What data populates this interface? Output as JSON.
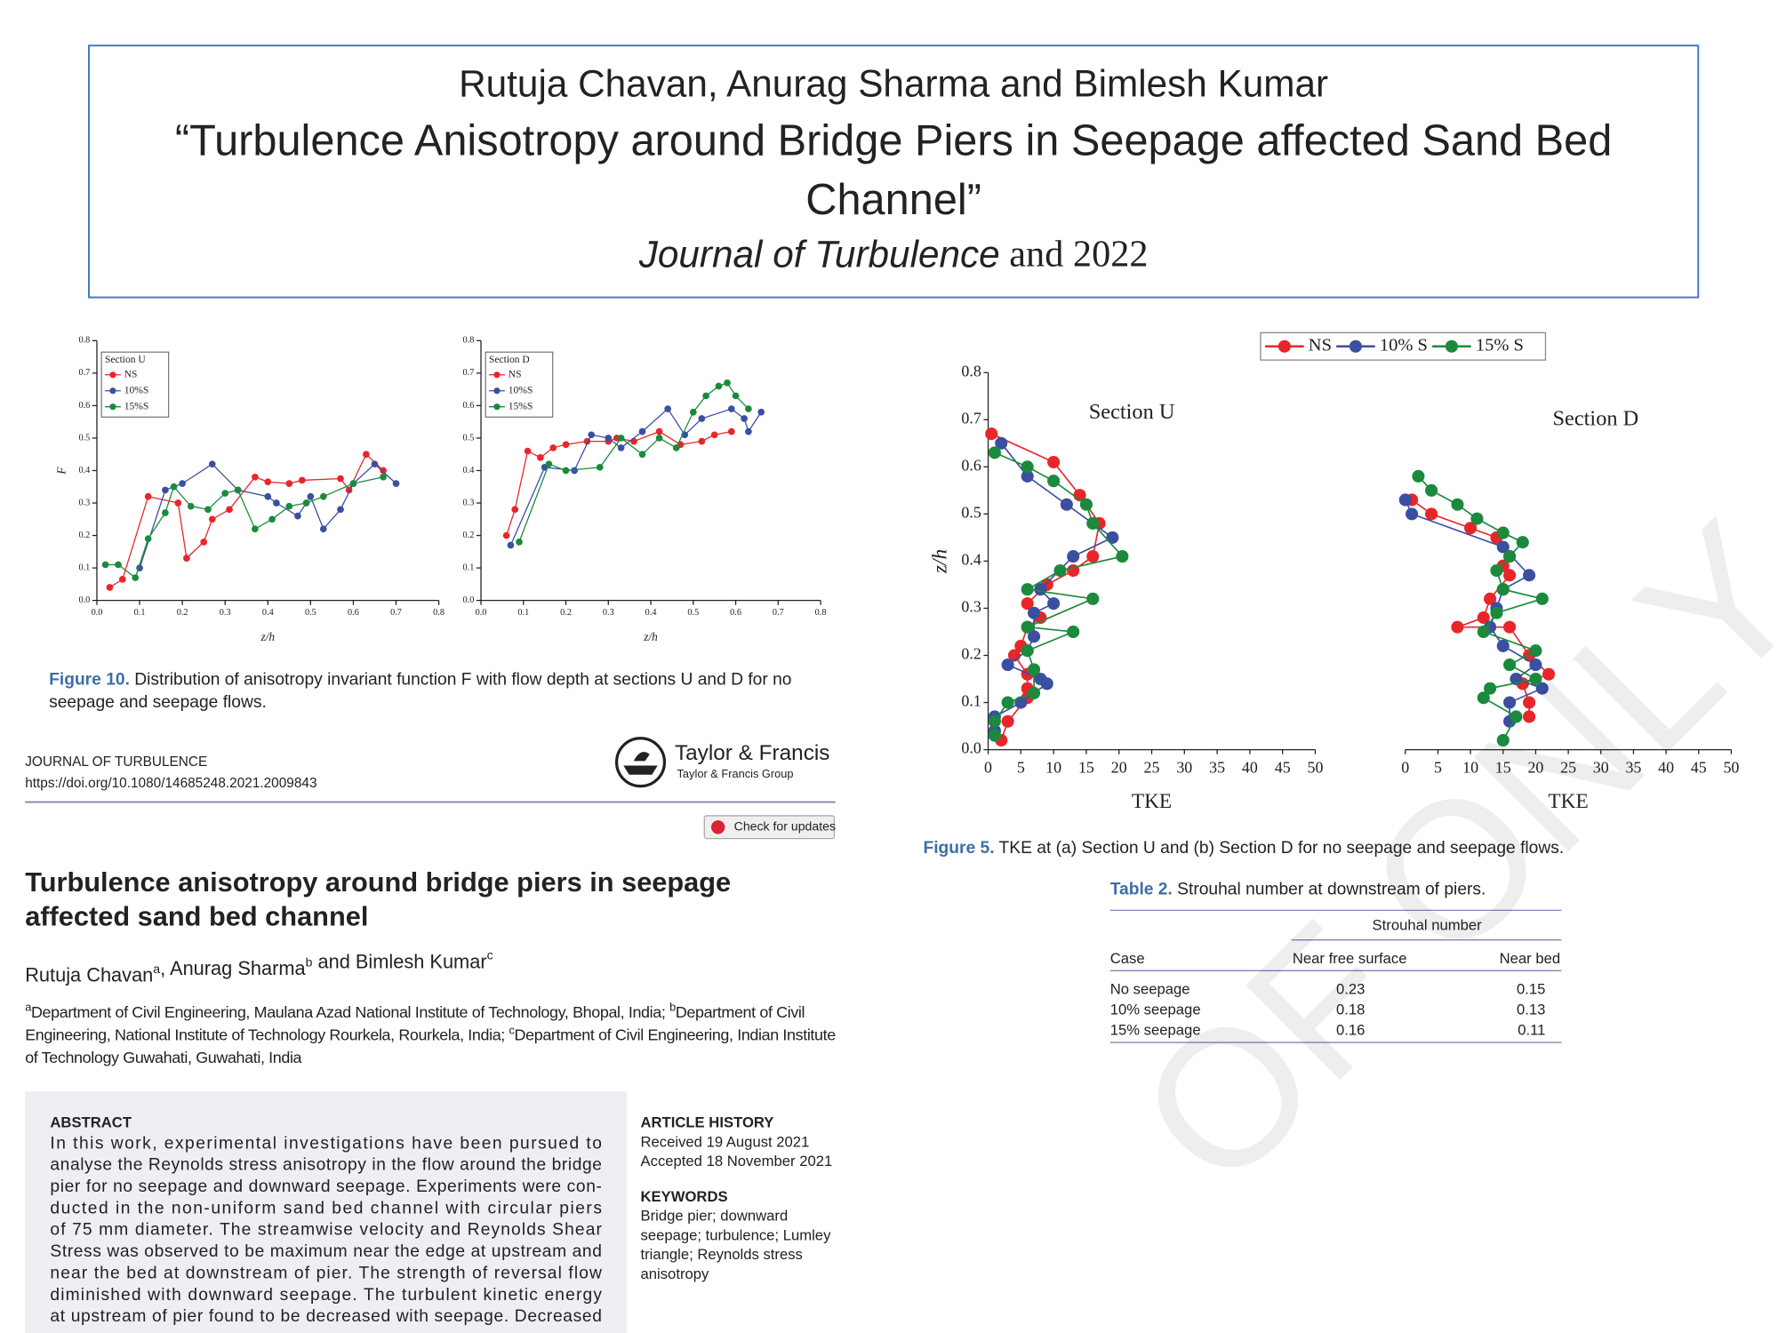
{
  "header": {
    "authors": "Rutuja Chavan, Anurag Sharma and Bimlesh Kumar",
    "title_lines": [
      "“Turbulence Anisotropy around Bridge Piers in Seepage affected Sand Bed",
      "Channel”"
    ],
    "journal": "Journal of Turbulence",
    "year_text": " and 2022"
  },
  "chart_data": [
    {
      "type": "line",
      "x_label": "z/h",
      "y_label": "F",
      "legend": "upper left",
      "legend_title": "Section U",
      "xlim": [
        0,
        0.8
      ],
      "ylim": [
        0,
        0.8
      ],
      "xticks": [
        {
          "value": 0,
          "label": "0.0"
        },
        0.1,
        0.2,
        0.3,
        0.4,
        0.5,
        0.6,
        0.7,
        0.8
      ],
      "yticks": [
        {
          "value": 0,
          "label": "0.0"
        },
        0.1,
        0.2,
        0.3,
        0.4,
        0.5,
        0.6,
        0.7,
        0.8
      ],
      "series": [
        {
          "name": "NS",
          "color": "#e8262a",
          "x": [
            0.03,
            0.06,
            0.12,
            0.19,
            0.21,
            0.25,
            0.27,
            0.31,
            0.37,
            0.4,
            0.45,
            0.48,
            0.57,
            0.59,
            0.63,
            0.67
          ],
          "values": [
            0.04,
            0.065,
            0.32,
            0.3,
            0.13,
            0.18,
            0.25,
            0.28,
            0.38,
            0.365,
            0.36,
            0.37,
            0.375,
            0.34,
            0.45,
            0.4
          ]
        },
        {
          "name": "10%S",
          "color": "#3a4fa0",
          "x": [
            0.1,
            0.16,
            0.2,
            0.27,
            0.33,
            0.4,
            0.42,
            0.47,
            0.5,
            0.53,
            0.57,
            0.6,
            0.65,
            0.7
          ],
          "values": [
            0.1,
            0.34,
            0.36,
            0.42,
            0.34,
            0.32,
            0.3,
            0.26,
            0.32,
            0.22,
            0.28,
            0.36,
            0.42,
            0.36
          ]
        },
        {
          "name": "15%S",
          "color": "#1b8a3c",
          "x": [
            0.02,
            0.05,
            0.09,
            0.12,
            0.16,
            0.18,
            0.22,
            0.26,
            0.3,
            0.33,
            0.37,
            0.41,
            0.45,
            0.49,
            0.53,
            0.6,
            0.67
          ],
          "values": [
            0.11,
            0.11,
            0.07,
            0.19,
            0.27,
            0.35,
            0.29,
            0.28,
            0.33,
            0.34,
            0.22,
            0.25,
            0.29,
            0.3,
            0.32,
            0.36,
            0.38
          ]
        }
      ]
    },
    {
      "type": "line",
      "x_label": "z/h",
      "legend": "upper left",
      "legend_title": "Section D",
      "xlim": [
        0,
        0.8
      ],
      "ylim": [
        0,
        0.8
      ],
      "xticks": [
        {
          "value": 0,
          "label": "0.0"
        },
        0.1,
        0.2,
        0.3,
        0.4,
        0.5,
        0.6,
        0.7,
        0.8
      ],
      "yticks": [
        {
          "value": 0,
          "label": "0.0"
        },
        0.1,
        0.2,
        0.3,
        0.4,
        0.5,
        0.6,
        0.7,
        0.8
      ],
      "series": [
        {
          "name": "NS",
          "color": "#e8262a",
          "x": [
            0.06,
            0.08,
            0.11,
            0.14,
            0.17,
            0.2,
            0.25,
            0.3,
            0.32,
            0.36,
            0.42,
            0.47,
            0.52,
            0.55,
            0.59
          ],
          "values": [
            0.2,
            0.28,
            0.46,
            0.44,
            0.47,
            0.48,
            0.49,
            0.49,
            0.5,
            0.49,
            0.52,
            0.48,
            0.49,
            0.51,
            0.52
          ]
        },
        {
          "name": "10%S",
          "color": "#3a4fa0",
          "x": [
            0.07,
            0.15,
            0.22,
            0.26,
            0.3,
            0.33,
            0.38,
            0.44,
            0.48,
            0.52,
            0.59,
            0.62,
            0.63,
            0.66
          ],
          "values": [
            0.17,
            0.41,
            0.4,
            0.51,
            0.5,
            0.47,
            0.52,
            0.59,
            0.51,
            0.56,
            0.59,
            0.56,
            0.52,
            0.58
          ]
        },
        {
          "name": "15%S",
          "color": "#1b8a3c",
          "x": [
            0.09,
            0.16,
            0.2,
            0.28,
            0.33,
            0.38,
            0.42,
            0.46,
            0.5,
            0.53,
            0.56,
            0.58,
            0.6,
            0.63
          ],
          "values": [
            0.18,
            0.42,
            0.4,
            0.41,
            0.5,
            0.45,
            0.5,
            0.47,
            0.58,
            0.63,
            0.66,
            0.67,
            0.63,
            0.59
          ]
        }
      ]
    },
    {
      "type": "line",
      "x_label": "TKE",
      "y_label": "z/h",
      "legend": "top",
      "annotation": "Section U",
      "xlim": [
        0,
        50
      ],
      "ylim": [
        0,
        0.8
      ],
      "xticks": [
        0,
        5,
        10,
        15,
        20,
        25,
        30,
        35,
        40,
        45,
        50
      ],
      "yticks": [
        {
          "value": 0,
          "label": "0.0"
        },
        0.1,
        0.2,
        0.3,
        0.4,
        0.5,
        0.6,
        0.7,
        0.8
      ],
      "series": [
        {
          "name": "NS",
          "color": "#e8262a",
          "x": [
            0.5,
            10,
            14,
            17,
            16,
            13,
            9,
            6,
            8,
            6,
            5,
            4,
            6,
            6,
            6,
            3,
            2
          ],
          "values": [
            0.67,
            0.61,
            0.54,
            0.48,
            0.41,
            0.38,
            0.35,
            0.31,
            0.28,
            0.26,
            0.22,
            0.2,
            0.16,
            0.13,
            0.11,
            0.06,
            0.02
          ]
        },
        {
          "name": "10% S",
          "color": "#3a4fa0",
          "x": [
            2,
            6,
            12,
            19,
            13,
            8,
            10,
            7,
            7,
            6,
            3,
            8,
            9,
            5,
            1,
            1
          ],
          "values": [
            0.65,
            0.58,
            0.52,
            0.45,
            0.41,
            0.34,
            0.31,
            0.29,
            0.24,
            0.21,
            0.18,
            0.15,
            0.14,
            0.1,
            0.07,
            0.04
          ]
        },
        {
          "name": "15% S",
          "color": "#1b8a3c",
          "x": [
            1,
            6,
            10,
            15,
            16,
            20.5,
            11,
            6,
            16,
            6,
            13,
            6,
            7,
            7,
            3,
            1,
            1
          ],
          "values": [
            0.63,
            0.6,
            0.57,
            0.52,
            0.48,
            0.41,
            0.38,
            0.34,
            0.32,
            0.26,
            0.25,
            0.21,
            0.17,
            0.12,
            0.1,
            0.06,
            0.03
          ]
        }
      ]
    },
    {
      "type": "line",
      "x_label": "TKE",
      "annotation": "Section D",
      "xlim": [
        0,
        50
      ],
      "ylim": [
        0,
        0.8
      ],
      "xticks": [
        0,
        5,
        10,
        15,
        20,
        25,
        30,
        35,
        40,
        45,
        50
      ],
      "series": [
        {
          "color": "#e8262a",
          "x": [
            1,
            4,
            10,
            14,
            16,
            15,
            16,
            13,
            12,
            8,
            16,
            19,
            22,
            18,
            19,
            19
          ],
          "values": [
            0.53,
            0.5,
            0.47,
            0.45,
            0.41,
            0.39,
            0.37,
            0.32,
            0.28,
            0.26,
            0.26,
            0.2,
            0.16,
            0.14,
            0.1,
            0.07
          ]
        },
        {
          "color": "#3a4fa0",
          "x": [
            0,
            1,
            15,
            19,
            15,
            14,
            13,
            15,
            20,
            17,
            21,
            16,
            16
          ],
          "values": [
            0.53,
            0.5,
            0.43,
            0.37,
            0.34,
            0.3,
            0.26,
            0.22,
            0.18,
            0.15,
            0.13,
            0.1,
            0.06
          ]
        },
        {
          "color": "#1b8a3c",
          "x": [
            2,
            4,
            8,
            11,
            15,
            18,
            16,
            14,
            15,
            21,
            14,
            12,
            20,
            16,
            20,
            13,
            12,
            17,
            15
          ],
          "values": [
            0.58,
            0.55,
            0.52,
            0.49,
            0.46,
            0.44,
            0.41,
            0.38,
            0.34,
            0.32,
            0.29,
            0.25,
            0.21,
            0.18,
            0.15,
            0.13,
            0.11,
            0.07,
            0.02
          ]
        }
      ]
    }
  ],
  "captions": {
    "figure10": {
      "label": "Figure 10.",
      "lines": [
        " Distribution of anisotropy invariant function F with flow depth at sections U and D for no",
        "seepage and seepage flows."
      ]
    },
    "figure5": {
      "label": "Figure 5.",
      "text": " TKE at (a) Section U and (b) Section D for no seepage and seepage flows."
    }
  },
  "table": {
    "label": "Table 2.",
    "caption": " Strouhal number at downstream of piers.",
    "group_header": "Strouhal number",
    "columns": [
      "Case",
      "Near free surface",
      "Near bed"
    ],
    "rows": [
      [
        "No seepage",
        0.23,
        0.15
      ],
      [
        "10% seepage",
        0.18,
        0.13
      ],
      [
        "15% seepage",
        0.16,
        0.11
      ]
    ]
  },
  "paper": {
    "journal": "JOURNAL OF TURBULENCE",
    "doi": "https://doi.org/10.1080/14685248.2021.2009843",
    "publisher": "Taylor & Francis",
    "publisher_group": "Taylor & Francis Group",
    "updates_button": "Check for updates",
    "title_lines": [
      "Turbulence anisotropy around bridge piers in seepage",
      "affected sand bed channel"
    ],
    "authors": [
      {
        "text": "Rutuja Chavan",
        "sup": "a"
      },
      {
        "text": ", Anurag Sharma",
        "sup": "b"
      },
      {
        "text": " and Bimlesh Kumar",
        "sup": "c"
      }
    ],
    "affiliations": [
      {
        "sup": "a",
        "text": "Department of Civil Engineering, Maulana Azad National Institute of Technology, Bhopal, India; "
      },
      {
        "sup": "b",
        "text": "Department of Civil Engineering, National Institute of Technology Rourkela, Rourkela, India; "
      },
      {
        "sup": "c",
        "text": "Department of Civil Engineering, Indian Institute of Technology Guwahati, Guwahati, India"
      }
    ],
    "abstract_heading": "ABSTRACT",
    "abstract_lines": [
      "In this work, experimental investigations have been pursued to",
      "analyse the Reynolds stress anisotropy in the flow around the bridge",
      "pier for no seepage and downward seepage. Experiments were con-",
      "ducted in the non-uniform sand bed channel with circular piers",
      "of 75 mm diameter. The streamwise velocity and Reynolds Shear",
      "Stress was observed to be maximum near the edge at upstream and",
      "near the bed at downstream of pier. The strength of reversal flow",
      "diminished with downward seepage. The turbulent kinetic energy",
      "at upstream of pier found to be decreased with seepage. Decreased"
    ],
    "history_heading": "ARTICLE HISTORY",
    "history": [
      "Received 19 August 2021",
      "Accepted 18 November 2021"
    ],
    "keywords_heading": "KEYWORDS",
    "keywords_lines": [
      "Bridge pier; downward",
      "seepage; turbulence; Lumley",
      "triangle; Reynolds stress",
      "anisotropy"
    ]
  },
  "watermark": "OF ONLY"
}
